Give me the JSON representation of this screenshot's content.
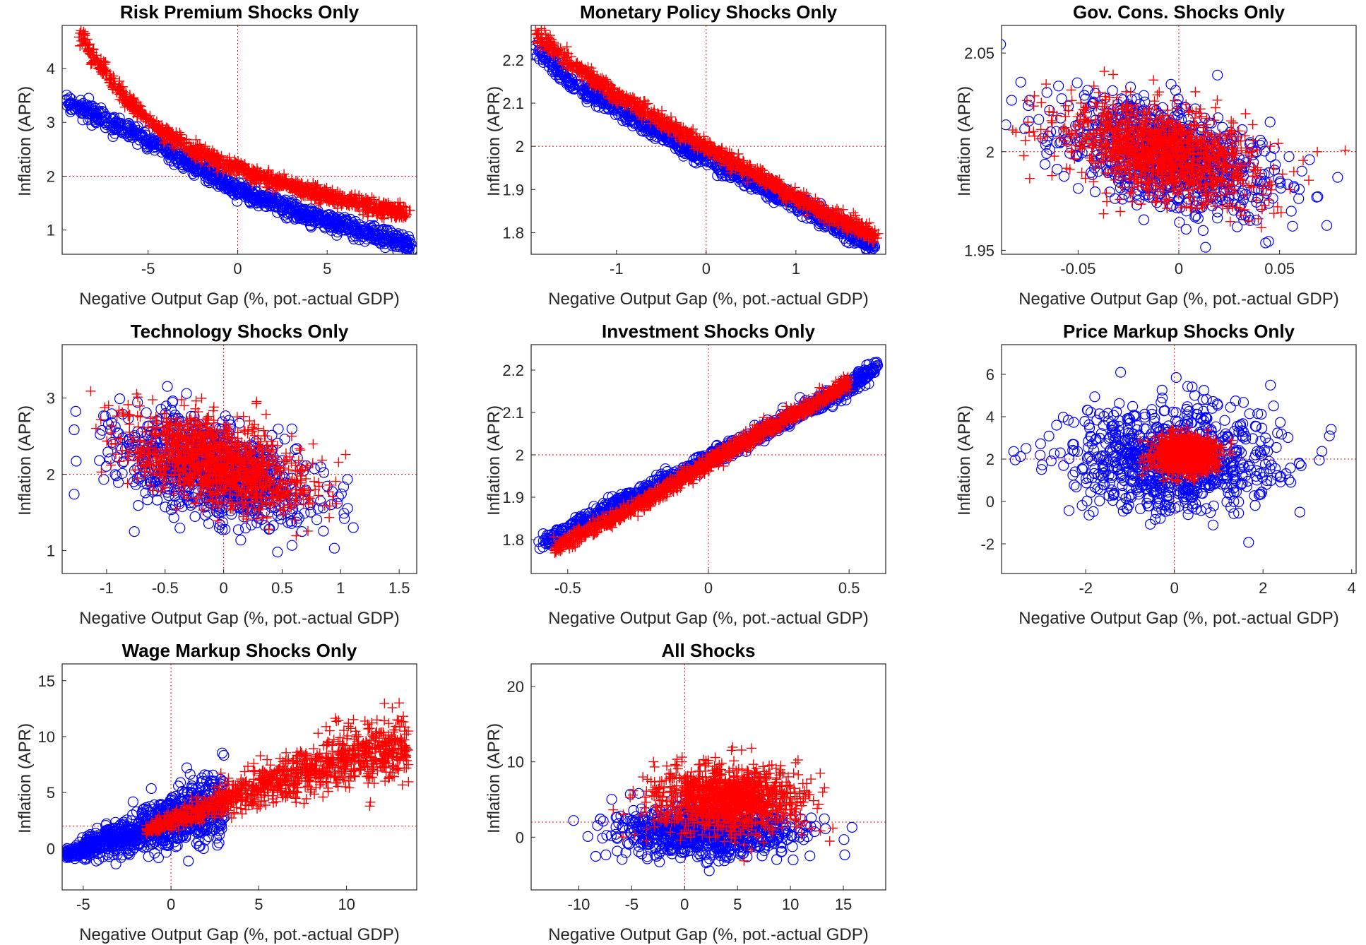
{
  "figure": {
    "colors": {
      "blue_series": "#0000ff",
      "red_series": "#ff0000",
      "reference_lines": "#ff0000",
      "axes": "#262626"
    }
  },
  "chart_data": [
    {
      "type": "scatter",
      "title": "Risk Premium Shocks Only",
      "xlabel": "Negative Output Gap (%, pot.-actual GDP)",
      "ylabel": "Inflation (APR)",
      "xlim": [
        -9.8,
        10
      ],
      "ylim": [
        0.55,
        4.8
      ],
      "xticks": [
        -5,
        0,
        5
      ],
      "yticks": [
        1,
        2,
        3,
        4
      ],
      "reference_lines": {
        "x": 0,
        "y": 2
      },
      "series": [
        {
          "marker": "circle",
          "color": "#0000ff",
          "x": [
            -9.5,
            -9,
            -8,
            -7,
            -6,
            -5,
            -4,
            -3,
            -2,
            -1,
            0,
            1,
            2,
            3,
            4,
            5,
            6,
            7,
            8,
            9,
            9.7
          ],
          "y": [
            3.4,
            3.3,
            3.15,
            3.0,
            2.85,
            2.68,
            2.5,
            2.3,
            2.12,
            1.95,
            1.75,
            1.62,
            1.5,
            1.38,
            1.27,
            1.17,
            1.07,
            0.97,
            0.88,
            0.78,
            0.7
          ]
        },
        {
          "marker": "plus",
          "color": "#ff0000",
          "x": [
            -8.8,
            -8,
            -7,
            -6,
            -5,
            -4,
            -3,
            -2,
            -1,
            0,
            1,
            2,
            3,
            4,
            5,
            6,
            7,
            8,
            9.5
          ],
          "y": [
            4.65,
            4.2,
            3.75,
            3.35,
            3.05,
            2.8,
            2.6,
            2.42,
            2.28,
            2.15,
            2.03,
            1.92,
            1.82,
            1.72,
            1.63,
            1.55,
            1.47,
            1.4,
            1.3
          ]
        }
      ]
    },
    {
      "type": "scatter",
      "title": "Monetary Policy Shocks Only",
      "xlabel": "Negative Output Gap (%, pot.-actual GDP)",
      "ylabel": "Inflation (APR)",
      "xlim": [
        -1.95,
        2.0
      ],
      "ylim": [
        1.75,
        2.28
      ],
      "xticks": [
        -1,
        0,
        1
      ],
      "yticks": [
        1.8,
        1.9,
        2,
        2.1,
        2.2
      ],
      "reference_lines": {
        "x": 0,
        "y": 2
      },
      "series": [
        {
          "marker": "circle",
          "color": "#0000ff",
          "x": [
            -1.9,
            -1.5,
            -1.0,
            -0.5,
            0,
            0.5,
            1.0,
            1.5,
            1.85
          ],
          "y": [
            2.23,
            2.15,
            2.09,
            2.03,
            1.97,
            1.92,
            1.87,
            1.81,
            1.77
          ]
        },
        {
          "marker": "plus",
          "color": "#ff0000",
          "x": [
            -1.9,
            -1.5,
            -1.0,
            -0.5,
            0,
            0.5,
            1.0,
            1.5,
            1.9
          ],
          "y": [
            2.26,
            2.19,
            2.12,
            2.06,
            2.0,
            1.94,
            1.88,
            1.83,
            1.79
          ]
        }
      ]
    },
    {
      "type": "scatter",
      "title": "Gov. Cons. Shocks Only",
      "xlabel": "Negative Output Gap (%, pot.-actual GDP)",
      "ylabel": "Inflation (APR)",
      "xlim": [
        -0.088,
        0.088
      ],
      "ylim": [
        1.948,
        2.064
      ],
      "xticks": [
        -0.05,
        0,
        0.05
      ],
      "yticks": [
        1.95,
        2,
        2.05
      ],
      "reference_lines": {
        "x": 0,
        "y": 2
      },
      "series": [
        {
          "marker": "circle",
          "color": "#0000ff",
          "x_center": -0.005,
          "y_center": 1.998,
          "x_spread": 0.085,
          "y_spread": 0.048
        },
        {
          "marker": "plus",
          "color": "#ff0000",
          "x_center": -0.01,
          "y_center": 2.0,
          "x_spread": 0.075,
          "y_spread": 0.042
        }
      ]
    },
    {
      "type": "scatter",
      "title": "Technology Shocks Only",
      "xlabel": "Negative Output Gap (%, pot.-actual GDP)",
      "ylabel": "Inflation (APR)",
      "xlim": [
        -1.38,
        1.65
      ],
      "ylim": [
        0.7,
        3.7
      ],
      "xticks": [
        -1,
        -0.5,
        0,
        0.5,
        1,
        1.5
      ],
      "yticks": [
        1,
        2,
        3
      ],
      "reference_lines": {
        "x": 0,
        "y": 2
      },
      "series": [
        {
          "marker": "circle",
          "color": "#0000ff",
          "x_center": -0.1,
          "y_center": 2.05,
          "x_spread": 1.3,
          "y_spread": 1.1
        },
        {
          "marker": "plus",
          "color": "#ff0000",
          "x_center": -0.05,
          "y_center": 2.15,
          "x_spread": 1.2,
          "y_spread": 1.0
        }
      ]
    },
    {
      "type": "scatter",
      "title": "Investment Shocks Only",
      "xlabel": "Negative Output Gap (%, pot.-actual GDP)",
      "ylabel": "Inflation (APR)",
      "xlim": [
        -0.63,
        0.63
      ],
      "ylim": [
        1.72,
        2.26
      ],
      "xticks": [
        -0.5,
        0,
        0.5
      ],
      "yticks": [
        1.8,
        1.9,
        2,
        2.1,
        2.2
      ],
      "reference_lines": {
        "x": 0,
        "y": 2
      },
      "series": [
        {
          "marker": "circle",
          "color": "#0000ff",
          "x": [
            -0.6,
            -0.45,
            -0.3,
            -0.15,
            0,
            0.15,
            0.3,
            0.45,
            0.6
          ],
          "y": [
            1.79,
            1.84,
            1.89,
            1.94,
            1.99,
            2.04,
            2.09,
            2.14,
            2.21
          ]
        },
        {
          "marker": "plus",
          "color": "#ff0000",
          "x": [
            -0.55,
            -0.4,
            -0.25,
            -0.1,
            0.05,
            0.2,
            0.35,
            0.5
          ],
          "y": [
            1.78,
            1.83,
            1.88,
            1.94,
            2.0,
            2.06,
            2.11,
            2.17
          ]
        }
      ]
    },
    {
      "type": "scatter",
      "title": "Price Markup Shocks Only",
      "xlabel": "Negative Output Gap (%, pot.-actual GDP)",
      "ylabel": "Inflation (APR)",
      "xlim": [
        -3.9,
        4.1
      ],
      "ylim": [
        -3.4,
        7.4
      ],
      "xticks": [
        -2,
        0,
        2,
        4
      ],
      "yticks": [
        -2,
        0,
        2,
        4,
        6
      ],
      "reference_lines": {
        "x": 0,
        "y": 2
      },
      "series": [
        {
          "marker": "circle",
          "color": "#0000ff",
          "x_center": 0.0,
          "y_center": 2.0,
          "x_spread": 3.6,
          "y_spread": 4.6
        },
        {
          "marker": "plus",
          "color": "#ff0000",
          "x_center": 0.25,
          "y_center": 2.2,
          "x_spread": 1.1,
          "y_spread": 1.6
        }
      ]
    },
    {
      "type": "scatter",
      "title": "Wage Markup Shocks Only",
      "xlabel": "Negative Output Gap (%, pot.-actual GDP)",
      "ylabel": "Inflation (APR)",
      "xlim": [
        -6.2,
        14
      ],
      "ylim": [
        -3.7,
        16.5
      ],
      "xticks": [
        -5,
        0,
        5,
        10
      ],
      "yticks": [
        0,
        5,
        10,
        15
      ],
      "reference_lines": {
        "x": 0,
        "y": 2
      },
      "series": [
        {
          "marker": "circle",
          "color": "#0000ff",
          "x": [
            -6,
            -5,
            -4,
            -3,
            -2,
            -1,
            0,
            1,
            2,
            3
          ],
          "y": [
            -0.5,
            0,
            0.5,
            1.0,
            1.5,
            2.0,
            2.5,
            3.0,
            3.5,
            4.0
          ]
        },
        {
          "marker": "plus",
          "color": "#ff0000",
          "x": [
            -1.5,
            0,
            2,
            4,
            6,
            8,
            10,
            12,
            13.5
          ],
          "y": [
            1.5,
            2.5,
            3.5,
            5.0,
            6.0,
            7.0,
            8.0,
            9.0,
            8.5
          ]
        }
      ]
    },
    {
      "type": "scatter",
      "title": "All Shocks",
      "xlabel": "Negative Output Gap (%, pot.-actual GDP)",
      "ylabel": "Inflation (APR)",
      "xlim": [
        -14.5,
        19
      ],
      "ylim": [
        -7,
        23
      ],
      "xticks": [
        -10,
        -5,
        0,
        5,
        10,
        15
      ],
      "yticks": [
        0,
        10,
        20
      ],
      "reference_lines": {
        "x": 0,
        "y": 2
      },
      "series": [
        {
          "marker": "circle",
          "color": "#0000ff",
          "x_center": 2.0,
          "y_center": 1.0,
          "x_spread": 13,
          "y_spread": 6.5
        },
        {
          "marker": "plus",
          "color": "#ff0000",
          "x_center": 4.0,
          "y_center": 5.0,
          "x_spread": 11,
          "y_spread": 8
        }
      ]
    }
  ]
}
